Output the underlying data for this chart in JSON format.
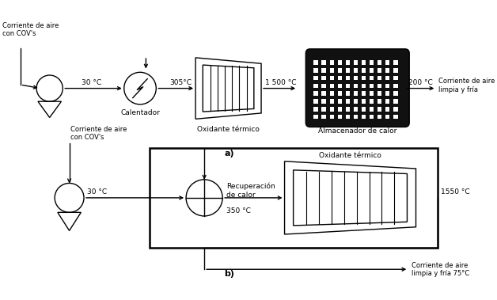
{
  "bg_color": "#ffffff",
  "line_color": "#000000",
  "text_color": "#000000",
  "title_a": "a)",
  "title_b": "b)",
  "diagram_a": {
    "temp_30": "30 °C",
    "temp_305": "305°C",
    "temp_1500": "1 500 °C",
    "temp_200": "200 °C",
    "label_heater": "Calentador",
    "label_oxidizer": "Oxidante térmico",
    "label_storage": "Almacenador de calor",
    "label_in": "Corriente de aire\ncon COV's",
    "label_out": "Corriente de aire\nlimpia y fría"
  },
  "diagram_b": {
    "temp_30": "30 °C",
    "temp_350": "350 °C",
    "temp_1550": "1550 °C",
    "label_recovery": "Recuperación\nde calor",
    "label_oxidizer": "Oxidante térmico",
    "label_in": "Corriente de aire\ncon COV's",
    "label_out": "Corriente de aire\nlimpia y fría 75°C"
  }
}
